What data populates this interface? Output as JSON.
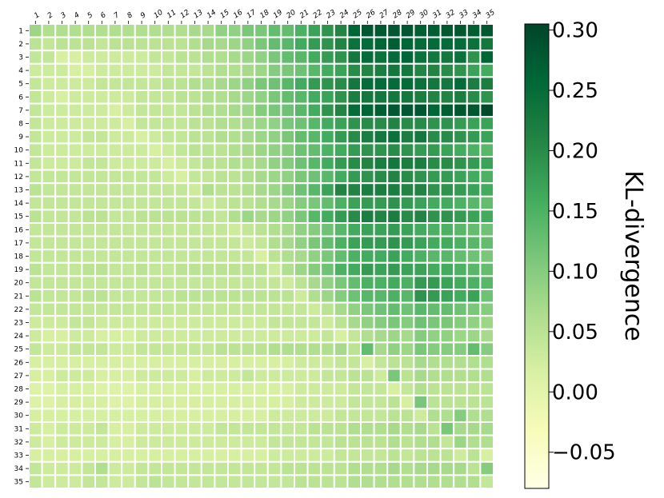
{
  "chart_data": {
    "type": "heatmap",
    "title": "",
    "xlabel": "",
    "ylabel": "",
    "x_labels": [
      "1",
      "2",
      "3",
      "4",
      "5",
      "6",
      "7",
      "8",
      "9",
      "10",
      "11",
      "12",
      "13",
      "14",
      "15",
      "16",
      "17",
      "18",
      "19",
      "20",
      "21",
      "22",
      "23",
      "24",
      "25",
      "26",
      "27",
      "28",
      "29",
      "30",
      "31",
      "32",
      "33",
      "34",
      "35"
    ],
    "y_labels": [
      "1",
      "2",
      "3",
      "4",
      "5",
      "6",
      "7",
      "8",
      "9",
      "10",
      "11",
      "12",
      "13",
      "14",
      "15",
      "16",
      "17",
      "18",
      "19",
      "20",
      "21",
      "22",
      "23",
      "24",
      "25",
      "26",
      "27",
      "28",
      "29",
      "30",
      "31",
      "32",
      "33",
      "34",
      "35"
    ],
    "x_tick_position": "top",
    "colormap": "YlGn",
    "vmin": -0.08,
    "vmax": 0.305,
    "colorbar": {
      "label": "KL-divergence",
      "ticks": [
        -0.05,
        0.0,
        0.05,
        0.1,
        0.15,
        0.2,
        0.25,
        0.3
      ],
      "tick_labels": [
        "−0.05",
        "0.00",
        "0.05",
        "0.10",
        "0.15",
        "0.20",
        "0.25",
        "0.30"
      ]
    },
    "grid": false,
    "values": [
      [
        0.08,
        0.06,
        0.06,
        0.06,
        0.06,
        0.06,
        0.06,
        0.06,
        0.06,
        0.06,
        0.06,
        0.06,
        0.07,
        0.07,
        0.09,
        0.09,
        0.11,
        0.11,
        0.13,
        0.13,
        0.15,
        0.17,
        0.19,
        0.21,
        0.26,
        0.28,
        0.28,
        0.28,
        0.28,
        0.27,
        0.27,
        0.28,
        0.28,
        0.27,
        0.28
      ],
      [
        0.05,
        0.04,
        0.05,
        0.05,
        0.05,
        0.04,
        0.05,
        0.05,
        0.05,
        0.05,
        0.05,
        0.05,
        0.06,
        0.07,
        0.07,
        0.08,
        0.09,
        0.11,
        0.13,
        0.14,
        0.16,
        0.18,
        0.19,
        0.21,
        0.24,
        0.25,
        0.26,
        0.27,
        0.26,
        0.25,
        0.25,
        0.25,
        0.25,
        0.24,
        0.23
      ],
      [
        0.04,
        0.04,
        0.02,
        0.02,
        0.03,
        0.03,
        0.03,
        0.03,
        0.03,
        0.04,
        0.04,
        0.05,
        0.05,
        0.06,
        0.06,
        0.07,
        0.08,
        0.09,
        0.11,
        0.13,
        0.14,
        0.16,
        0.18,
        0.19,
        0.23,
        0.25,
        0.24,
        0.25,
        0.26,
        0.24,
        0.23,
        0.23,
        0.24,
        0.19,
        0.26
      ],
      [
        0.03,
        0.03,
        0.03,
        0.02,
        0.02,
        0.03,
        0.03,
        0.03,
        0.03,
        0.03,
        0.04,
        0.04,
        0.04,
        0.05,
        0.06,
        0.06,
        0.07,
        0.08,
        0.1,
        0.11,
        0.12,
        0.14,
        0.16,
        0.17,
        0.2,
        0.21,
        0.22,
        0.23,
        0.23,
        0.21,
        0.21,
        0.2,
        0.19,
        0.17,
        0.16
      ],
      [
        0.04,
        0.03,
        0.03,
        0.03,
        0.03,
        0.04,
        0.04,
        0.04,
        0.04,
        0.04,
        0.05,
        0.05,
        0.06,
        0.06,
        0.07,
        0.08,
        0.09,
        0.11,
        0.12,
        0.14,
        0.16,
        0.18,
        0.19,
        0.2,
        0.23,
        0.25,
        0.25,
        0.25,
        0.25,
        0.24,
        0.23,
        0.23,
        0.25,
        0.22,
        0.22
      ],
      [
        0.04,
        0.03,
        0.02,
        0.03,
        0.03,
        0.03,
        0.03,
        0.03,
        0.04,
        0.04,
        0.04,
        0.05,
        0.05,
        0.06,
        0.06,
        0.07,
        0.08,
        0.09,
        0.11,
        0.13,
        0.14,
        0.16,
        0.17,
        0.19,
        0.22,
        0.23,
        0.23,
        0.23,
        0.23,
        0.22,
        0.21,
        0.21,
        0.22,
        0.2,
        0.19
      ],
      [
        0.04,
        0.03,
        0.03,
        0.03,
        0.03,
        0.03,
        0.02,
        0.03,
        0.04,
        0.04,
        0.04,
        0.04,
        0.05,
        0.06,
        0.06,
        0.07,
        0.08,
        0.1,
        0.11,
        0.12,
        0.14,
        0.16,
        0.19,
        0.21,
        0.25,
        0.26,
        0.27,
        0.28,
        0.28,
        0.28,
        0.26,
        0.27,
        0.28,
        0.28,
        0.3
      ],
      [
        0.04,
        0.03,
        0.03,
        0.03,
        0.03,
        0.03,
        0.03,
        0.02,
        0.04,
        0.04,
        0.04,
        0.04,
        0.05,
        0.05,
        0.06,
        0.06,
        0.07,
        0.08,
        0.09,
        0.11,
        0.12,
        0.14,
        0.16,
        0.17,
        0.19,
        0.2,
        0.2,
        0.21,
        0.2,
        0.2,
        0.19,
        0.19,
        0.18,
        0.17,
        0.17
      ],
      [
        0.04,
        0.03,
        0.03,
        0.03,
        0.04,
        0.04,
        0.03,
        0.03,
        0.02,
        0.03,
        0.04,
        0.04,
        0.05,
        0.05,
        0.06,
        0.06,
        0.07,
        0.08,
        0.09,
        0.11,
        0.13,
        0.14,
        0.16,
        0.18,
        0.2,
        0.22,
        0.23,
        0.24,
        0.22,
        0.23,
        0.2,
        0.2,
        0.19,
        0.18,
        0.17
      ],
      [
        0.04,
        0.03,
        0.03,
        0.03,
        0.03,
        0.03,
        0.03,
        0.03,
        0.03,
        0.02,
        0.03,
        0.04,
        0.05,
        0.05,
        0.05,
        0.06,
        0.07,
        0.08,
        0.09,
        0.1,
        0.12,
        0.13,
        0.15,
        0.16,
        0.18,
        0.19,
        0.19,
        0.2,
        0.19,
        0.18,
        0.18,
        0.17,
        0.16,
        0.15,
        0.14
      ],
      [
        0.04,
        0.03,
        0.03,
        0.03,
        0.04,
        0.04,
        0.03,
        0.03,
        0.03,
        0.03,
        0.02,
        0.03,
        0.04,
        0.05,
        0.05,
        0.06,
        0.06,
        0.07,
        0.09,
        0.1,
        0.12,
        0.14,
        0.16,
        0.18,
        0.2,
        0.21,
        0.22,
        0.23,
        0.22,
        0.22,
        0.2,
        0.2,
        0.19,
        0.18,
        0.17
      ],
      [
        0.04,
        0.04,
        0.04,
        0.04,
        0.04,
        0.04,
        0.04,
        0.04,
        0.04,
        0.04,
        0.03,
        0.02,
        0.04,
        0.04,
        0.05,
        0.05,
        0.06,
        0.07,
        0.08,
        0.09,
        0.11,
        0.12,
        0.14,
        0.16,
        0.18,
        0.19,
        0.2,
        0.21,
        0.2,
        0.19,
        0.18,
        0.18,
        0.17,
        0.16,
        0.15
      ],
      [
        0.05,
        0.04,
        0.04,
        0.04,
        0.04,
        0.04,
        0.04,
        0.04,
        0.04,
        0.04,
        0.04,
        0.04,
        0.03,
        0.06,
        0.05,
        0.05,
        0.06,
        0.07,
        0.08,
        0.1,
        0.12,
        0.14,
        0.17,
        0.21,
        0.21,
        0.22,
        0.22,
        0.22,
        0.21,
        0.21,
        0.19,
        0.19,
        0.18,
        0.17,
        0.16
      ],
      [
        0.04,
        0.04,
        0.04,
        0.04,
        0.04,
        0.04,
        0.04,
        0.04,
        0.04,
        0.04,
        0.04,
        0.04,
        0.04,
        0.03,
        0.04,
        0.05,
        0.05,
        0.06,
        0.07,
        0.08,
        0.1,
        0.11,
        0.13,
        0.15,
        0.17,
        0.18,
        0.18,
        0.19,
        0.18,
        0.17,
        0.16,
        0.16,
        0.15,
        0.14,
        0.13
      ],
      [
        0.05,
        0.04,
        0.04,
        0.04,
        0.05,
        0.05,
        0.04,
        0.04,
        0.05,
        0.05,
        0.05,
        0.05,
        0.05,
        0.05,
        0.04,
        0.06,
        0.08,
        0.07,
        0.08,
        0.09,
        0.11,
        0.14,
        0.16,
        0.18,
        0.2,
        0.22,
        0.21,
        0.22,
        0.2,
        0.21,
        0.19,
        0.19,
        0.18,
        0.17,
        0.16
      ],
      [
        0.04,
        0.04,
        0.04,
        0.04,
        0.04,
        0.04,
        0.04,
        0.04,
        0.04,
        0.04,
        0.04,
        0.04,
        0.04,
        0.04,
        0.04,
        0.03,
        0.04,
        0.05,
        0.06,
        0.07,
        0.09,
        0.1,
        0.12,
        0.14,
        0.16,
        0.17,
        0.17,
        0.18,
        0.17,
        0.16,
        0.15,
        0.15,
        0.14,
        0.13,
        0.12
      ],
      [
        0.04,
        0.04,
        0.04,
        0.04,
        0.04,
        0.04,
        0.04,
        0.04,
        0.04,
        0.04,
        0.04,
        0.04,
        0.04,
        0.04,
        0.04,
        0.04,
        0.03,
        0.04,
        0.06,
        0.07,
        0.09,
        0.11,
        0.13,
        0.15,
        0.17,
        0.18,
        0.18,
        0.19,
        0.18,
        0.17,
        0.16,
        0.16,
        0.15,
        0.14,
        0.13
      ],
      [
        0.04,
        0.04,
        0.04,
        0.04,
        0.04,
        0.04,
        0.04,
        0.04,
        0.04,
        0.04,
        0.04,
        0.04,
        0.04,
        0.04,
        0.04,
        0.04,
        0.04,
        0.02,
        0.05,
        0.06,
        0.07,
        0.09,
        0.11,
        0.13,
        0.15,
        0.16,
        0.16,
        0.17,
        0.16,
        0.15,
        0.14,
        0.14,
        0.13,
        0.12,
        0.11
      ],
      [
        0.05,
        0.04,
        0.04,
        0.04,
        0.05,
        0.05,
        0.04,
        0.04,
        0.05,
        0.04,
        0.04,
        0.05,
        0.05,
        0.05,
        0.05,
        0.05,
        0.05,
        0.05,
        0.03,
        0.06,
        0.08,
        0.1,
        0.12,
        0.15,
        0.16,
        0.18,
        0.17,
        0.18,
        0.17,
        0.17,
        0.16,
        0.16,
        0.15,
        0.14,
        0.13
      ],
      [
        0.04,
        0.04,
        0.04,
        0.04,
        0.04,
        0.04,
        0.04,
        0.04,
        0.04,
        0.04,
        0.04,
        0.04,
        0.04,
        0.04,
        0.04,
        0.04,
        0.04,
        0.04,
        0.04,
        0.03,
        0.05,
        0.07,
        0.09,
        0.11,
        0.13,
        0.15,
        0.15,
        0.16,
        0.15,
        0.18,
        0.18,
        0.17,
        0.16,
        0.15,
        0.14
      ],
      [
        0.05,
        0.04,
        0.04,
        0.04,
        0.05,
        0.05,
        0.04,
        0.04,
        0.04,
        0.04,
        0.04,
        0.05,
        0.05,
        0.05,
        0.05,
        0.05,
        0.05,
        0.05,
        0.05,
        0.05,
        0.03,
        0.06,
        0.08,
        0.1,
        0.12,
        0.14,
        0.14,
        0.15,
        0.14,
        0.19,
        0.18,
        0.17,
        0.16,
        0.17,
        0.12
      ],
      [
        0.04,
        0.04,
        0.04,
        0.04,
        0.04,
        0.04,
        0.04,
        0.04,
        0.04,
        0.04,
        0.04,
        0.04,
        0.04,
        0.04,
        0.04,
        0.04,
        0.04,
        0.04,
        0.04,
        0.04,
        0.04,
        0.03,
        0.05,
        0.07,
        0.09,
        0.11,
        0.12,
        0.13,
        0.12,
        0.14,
        0.13,
        0.13,
        0.12,
        0.11,
        0.1
      ],
      [
        0.03,
        0.03,
        0.03,
        0.04,
        0.04,
        0.03,
        0.03,
        0.03,
        0.03,
        0.03,
        0.03,
        0.03,
        0.03,
        0.03,
        0.03,
        0.03,
        0.03,
        0.03,
        0.04,
        0.04,
        0.04,
        0.04,
        0.03,
        0.05,
        0.07,
        0.09,
        0.1,
        0.11,
        0.1,
        0.12,
        0.11,
        0.11,
        0.1,
        0.09,
        0.08
      ],
      [
        0.03,
        0.02,
        0.02,
        0.03,
        0.03,
        0.02,
        0.02,
        0.02,
        0.03,
        0.03,
        0.03,
        0.03,
        0.03,
        0.03,
        0.03,
        0.03,
        0.03,
        0.03,
        0.03,
        0.03,
        0.03,
        0.03,
        0.04,
        0.02,
        0.04,
        0.06,
        0.07,
        0.08,
        0.07,
        0.1,
        0.09,
        0.09,
        0.08,
        0.08,
        0.07
      ],
      [
        0.04,
        0.03,
        0.03,
        0.04,
        0.04,
        0.04,
        0.03,
        0.03,
        0.04,
        0.04,
        0.04,
        0.04,
        0.04,
        0.04,
        0.05,
        0.05,
        0.05,
        0.05,
        0.06,
        0.06,
        0.06,
        0.06,
        0.06,
        0.07,
        0.05,
        0.13,
        0.07,
        0.09,
        0.08,
        0.11,
        0.1,
        0.1,
        0.1,
        0.13,
        0.1
      ],
      [
        0.02,
        0.02,
        0.02,
        0.02,
        0.02,
        0.02,
        0.02,
        0.02,
        0.02,
        0.02,
        0.02,
        0.02,
        0.02,
        0.02,
        0.02,
        0.02,
        0.02,
        0.02,
        0.02,
        0.02,
        0.03,
        0.03,
        0.03,
        0.04,
        0.04,
        0.02,
        0.04,
        0.05,
        0.05,
        0.07,
        0.06,
        0.06,
        0.06,
        0.06,
        0.06
      ],
      [
        0.02,
        0.02,
        0.03,
        0.03,
        0.03,
        0.02,
        0.02,
        0.02,
        0.03,
        0.03,
        0.03,
        0.03,
        0.02,
        0.03,
        0.03,
        0.03,
        0.04,
        0.03,
        0.03,
        0.03,
        0.03,
        0.03,
        0.04,
        0.04,
        0.05,
        0.05,
        0.03,
        0.11,
        0.05,
        0.07,
        0.06,
        0.06,
        0.06,
        0.06,
        0.06
      ],
      [
        0.01,
        0.01,
        0.02,
        0.02,
        0.02,
        0.01,
        0.01,
        0.01,
        0.02,
        0.02,
        0.02,
        0.02,
        0.02,
        0.02,
        0.02,
        0.02,
        0.02,
        0.02,
        0.02,
        0.02,
        0.03,
        0.03,
        0.03,
        0.03,
        0.04,
        0.04,
        0.04,
        0.02,
        0.04,
        0.06,
        0.05,
        0.05,
        0.05,
        0.05,
        0.05
      ],
      [
        0.01,
        0.01,
        0.02,
        0.02,
        0.02,
        0.02,
        0.01,
        0.01,
        0.02,
        0.02,
        0.02,
        0.02,
        0.02,
        0.02,
        0.02,
        0.02,
        0.02,
        0.02,
        0.02,
        0.02,
        0.03,
        0.03,
        0.03,
        0.03,
        0.04,
        0.04,
        0.04,
        0.05,
        0.02,
        0.11,
        0.05,
        0.05,
        0.05,
        0.05,
        0.05
      ],
      [
        0.02,
        0.02,
        0.02,
        0.02,
        0.02,
        0.02,
        0.02,
        0.02,
        0.02,
        0.02,
        0.02,
        0.02,
        0.02,
        0.02,
        0.02,
        0.02,
        0.02,
        0.02,
        0.03,
        0.03,
        0.03,
        0.03,
        0.03,
        0.04,
        0.04,
        0.04,
        0.04,
        0.05,
        0.05,
        0.03,
        0.06,
        0.06,
        0.1,
        0.06,
        0.06
      ],
      [
        0.03,
        0.02,
        0.03,
        0.03,
        0.03,
        0.04,
        0.02,
        0.02,
        0.03,
        0.03,
        0.03,
        0.03,
        0.03,
        0.03,
        0.04,
        0.04,
        0.04,
        0.04,
        0.04,
        0.04,
        0.04,
        0.05,
        0.05,
        0.05,
        0.06,
        0.06,
        0.06,
        0.07,
        0.06,
        0.07,
        0.05,
        0.11,
        0.07,
        0.07,
        0.07
      ],
      [
        0.03,
        0.02,
        0.03,
        0.03,
        0.03,
        0.03,
        0.02,
        0.02,
        0.03,
        0.03,
        0.03,
        0.03,
        0.03,
        0.03,
        0.03,
        0.03,
        0.03,
        0.03,
        0.04,
        0.04,
        0.04,
        0.04,
        0.04,
        0.05,
        0.05,
        0.05,
        0.05,
        0.06,
        0.05,
        0.06,
        0.06,
        0.04,
        0.08,
        0.06,
        0.06
      ],
      [
        0.02,
        0.02,
        0.02,
        0.02,
        0.02,
        0.02,
        0.02,
        0.02,
        0.02,
        0.02,
        0.02,
        0.02,
        0.02,
        0.02,
        0.02,
        0.02,
        0.02,
        0.02,
        0.03,
        0.03,
        0.03,
        0.03,
        0.03,
        0.04,
        0.04,
        0.04,
        0.04,
        0.05,
        0.04,
        0.05,
        0.05,
        0.05,
        0.03,
        0.05,
        0.02
      ],
      [
        0.04,
        0.03,
        0.03,
        0.03,
        0.04,
        0.06,
        0.03,
        0.03,
        0.04,
        0.04,
        0.04,
        0.04,
        0.04,
        0.04,
        0.04,
        0.04,
        0.04,
        0.04,
        0.04,
        0.05,
        0.05,
        0.05,
        0.05,
        0.05,
        0.06,
        0.06,
        0.06,
        0.07,
        0.06,
        0.07,
        0.07,
        0.07,
        0.07,
        0.05,
        0.1
      ],
      [
        0.04,
        0.03,
        0.03,
        0.03,
        0.04,
        0.04,
        0.03,
        0.03,
        0.04,
        0.05,
        0.04,
        0.04,
        0.04,
        0.04,
        0.04,
        0.04,
        0.04,
        0.04,
        0.04,
        0.04,
        0.05,
        0.05,
        0.05,
        0.05,
        0.06,
        0.06,
        0.06,
        0.06,
        0.06,
        0.06,
        0.06,
        0.06,
        0.06,
        0.06,
        0.04
      ]
    ]
  }
}
